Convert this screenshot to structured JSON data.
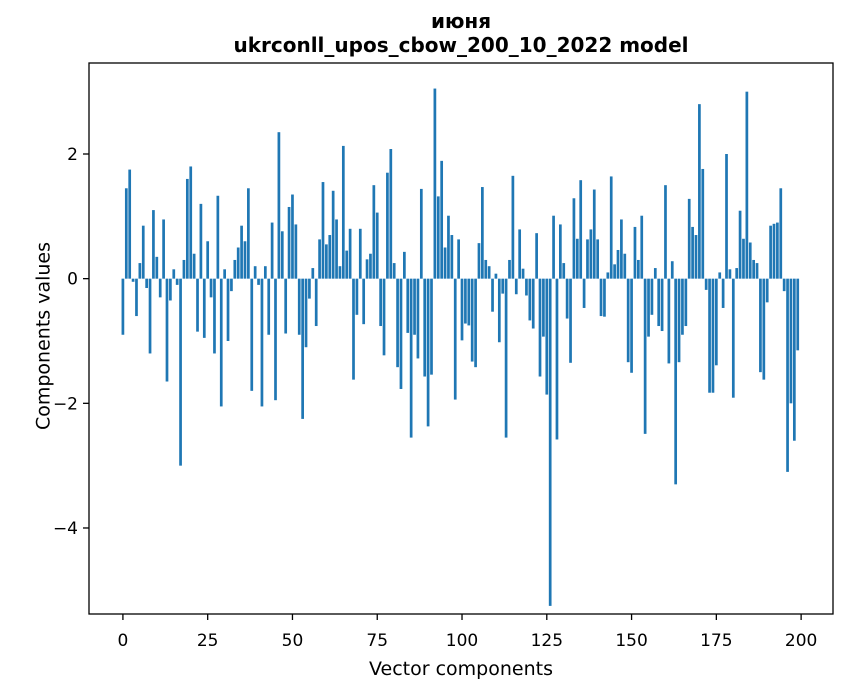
{
  "figure": {
    "background": "#ffffff",
    "frame_color": "#000000"
  },
  "chart_data": {
    "type": "bar",
    "title": "июня",
    "subtitle": "ukrconll_upos_cbow_200_10_2022 model",
    "xlabel": "Vector components",
    "ylabel": "Components values",
    "bar_color": "#1f77b4",
    "legend": "none",
    "grid": false,
    "x_start": 0,
    "bar_width": 0.8,
    "xlim": [
      -10.0,
      209.4
    ],
    "ylim": [
      -5.38,
      3.46
    ],
    "xticks": [
      0,
      25,
      50,
      75,
      100,
      125,
      150,
      175,
      200
    ],
    "xtick_labels": [
      "0",
      "25",
      "50",
      "75",
      "100",
      "125",
      "150",
      "175",
      "200"
    ],
    "yticks": [
      2,
      0,
      -2,
      -4
    ],
    "ytick_labels": [
      "2",
      "0",
      "−2",
      "−4"
    ],
    "values": [
      -0.9,
      1.45,
      1.75,
      -0.05,
      -0.6,
      0.25,
      0.85,
      -0.15,
      -1.2,
      1.1,
      0.35,
      -0.3,
      0.95,
      -1.65,
      -0.35,
      0.15,
      -0.1,
      -3.0,
      0.3,
      1.6,
      1.8,
      0.4,
      -0.85,
      1.2,
      -0.95,
      0.6,
      -0.3,
      -1.2,
      1.33,
      -2.05,
      0.15,
      -1.0,
      -0.2,
      0.3,
      0.5,
      0.85,
      0.6,
      1.45,
      -1.8,
      0.2,
      -0.1,
      -2.05,
      0.2,
      -0.9,
      0.9,
      -1.95,
      2.35,
      0.76,
      -0.88,
      1.15,
      1.35,
      0.87,
      -0.9,
      -2.25,
      -1.1,
      -0.32,
      0.17,
      -0.76,
      0.63,
      1.55,
      0.55,
      0.7,
      1.41,
      0.95,
      0.2,
      2.13,
      0.45,
      0.8,
      -1.62,
      -0.58,
      0.8,
      -0.73,
      0.31,
      0.4,
      1.5,
      1.06,
      -0.76,
      -1.23,
      1.7,
      2.08,
      0.25,
      -1.42,
      -1.77,
      0.43,
      -0.87,
      -2.55,
      -0.9,
      -1.28,
      1.44,
      -1.57,
      -2.37,
      -1.54,
      3.05,
      1.32,
      1.89,
      0.5,
      1.01,
      0.7,
      -1.94,
      0.63,
      -0.99,
      -0.72,
      -0.75,
      -1.33,
      -1.42,
      0.57,
      1.47,
      0.3,
      0.2,
      -0.53,
      0.08,
      -1.02,
      -0.24,
      -2.55,
      0.3,
      1.65,
      -0.25,
      0.79,
      0.16,
      -0.27,
      -0.67,
      -0.8,
      0.73,
      -1.57,
      -0.93,
      -1.86,
      -5.25,
      1.01,
      -2.58,
      0.87,
      0.25,
      -0.64,
      -1.35,
      1.29,
      0.64,
      1.58,
      -0.47,
      0.63,
      0.79,
      1.43,
      0.63,
      -0.6,
      -0.61,
      0.1,
      1.64,
      0.23,
      0.46,
      0.95,
      0.4,
      -1.34,
      -1.51,
      0.83,
      0.3,
      1.01,
      -2.49,
      -0.93,
      -0.58,
      0.17,
      -0.76,
      -0.84,
      1.5,
      -1.36,
      0.28,
      -3.3,
      -1.34,
      -0.9,
      -0.76,
      1.28,
      0.83,
      0.7,
      2.8,
      1.76,
      -0.18,
      -1.83,
      -1.83,
      -1.39,
      0.1,
      -0.47,
      2.0,
      0.15,
      -1.91,
      0.17,
      1.09,
      0.64,
      3.0,
      0.58,
      0.3,
      0.25,
      -1.5,
      -1.62,
      -0.38,
      0.85,
      0.88,
      0.9,
      1.45,
      -0.2,
      -3.1,
      -2.0,
      -2.6,
      -1.15
    ]
  }
}
